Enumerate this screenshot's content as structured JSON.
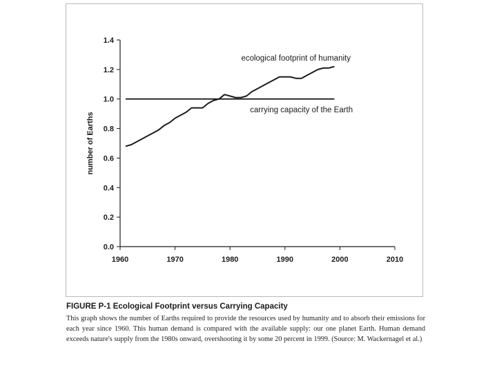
{
  "chart_data": {
    "type": "line",
    "title": "",
    "xlabel": "",
    "ylabel": "number of Earths",
    "xlim": [
      1960,
      2010
    ],
    "ylim": [
      0.0,
      1.4
    ],
    "x_ticks": [
      "1960",
      "1970",
      "1980",
      "1990",
      "2000",
      "2010"
    ],
    "y_ticks": [
      "0.0",
      "0.2",
      "0.4",
      "0.6",
      "0.8",
      "1.0",
      "1.2",
      "1.4"
    ],
    "grid": false,
    "legend": "none",
    "series": [
      {
        "name": "ecological footprint of humanity",
        "x": [
          1961,
          1962,
          1963,
          1964,
          1965,
          1966,
          1967,
          1968,
          1969,
          1970,
          1971,
          1972,
          1973,
          1974,
          1975,
          1976,
          1977,
          1978,
          1979,
          1980,
          1981,
          1982,
          1983,
          1984,
          1985,
          1986,
          1987,
          1988,
          1989,
          1990,
          1991,
          1992,
          1993,
          1994,
          1995,
          1996,
          1997,
          1998,
          1999
        ],
        "values": [
          0.68,
          0.69,
          0.71,
          0.73,
          0.75,
          0.77,
          0.79,
          0.82,
          0.84,
          0.87,
          0.89,
          0.91,
          0.94,
          0.94,
          0.94,
          0.97,
          0.99,
          1.0,
          1.03,
          1.02,
          1.01,
          1.01,
          1.02,
          1.05,
          1.07,
          1.09,
          1.11,
          1.13,
          1.15,
          1.15,
          1.15,
          1.14,
          1.14,
          1.16,
          1.18,
          1.2,
          1.21,
          1.21,
          1.22
        ],
        "color": "#1a1a1a"
      },
      {
        "name": "carrying capacity of the Earth",
        "x": [
          1961,
          1999
        ],
        "values": [
          1.0,
          1.0
        ],
        "color": "#1a1a1a"
      }
    ],
    "annotations": [
      {
        "text": "ecological footprint of humanity",
        "x": 1992,
        "y": 1.26
      },
      {
        "text": "carrying capacity of the Earth",
        "x": 1993,
        "y": 0.91
      }
    ]
  },
  "caption": {
    "title": "FIGURE P-1 Ecological Footprint versus Carrying Capacity",
    "text": "This graph shows the number of Earths required to provide the resources used by humanity and to absorb their emissions for each year since 1960. This human demand is compared with the available supply: our one planet Earth. Human demand exceeds nature's supply from the 1980s onward, overshooting it by some 20 percent in 1999. (Source: M. Wackernagel et al.)"
  }
}
